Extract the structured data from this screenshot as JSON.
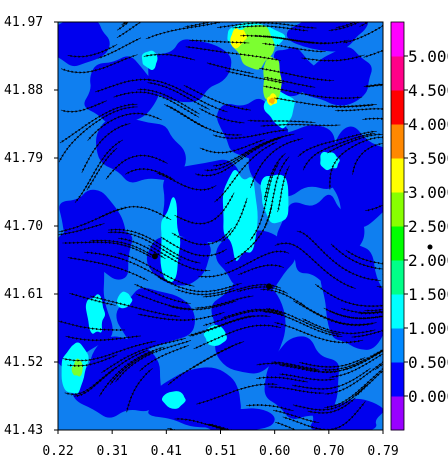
{
  "chart_data": {
    "type": "heatmap",
    "title": "",
    "xlabel": "",
    "ylabel": "",
    "x_ticks": [
      "0.22",
      "0.31",
      "0.41",
      "0.51",
      "0.60",
      "0.70",
      "0.79"
    ],
    "y_ticks": [
      "41.97",
      "41.88",
      "41.79",
      "41.70",
      "41.61",
      "41.52",
      "41.43"
    ],
    "xlim": [
      0.22,
      0.79
    ],
    "ylim": [
      41.43,
      41.97
    ],
    "colorbar": {
      "levels": [
        "0.000",
        "0.500",
        "1.000",
        "1.500",
        "2.000",
        "2.500",
        "3.000",
        "3.500",
        "4.000",
        "4.500",
        "5.000"
      ],
      "colors": [
        "#9900ff",
        "#0000ff",
        "#0088ff",
        "#00ffff",
        "#00ff88",
        "#00ff00",
        "#88ff00",
        "#ffff00",
        "#ff8800",
        "#ff0000",
        "#ff0088",
        "#ff00ff"
      ]
    },
    "field_colors": {
      "low": "#0000ee",
      "mid": "#0f7ff0",
      "high": "#00ffff",
      "peak_green": "#7cff30",
      "peak_yellow": "#ffff00",
      "peak_orange": "#ffb000"
    },
    "markers": [
      {
        "x": 0.39,
        "y": 41.66
      },
      {
        "x": 0.59,
        "y": 41.62
      }
    ],
    "overlay": "streamlines",
    "grid": false,
    "legend": "colorbar-right"
  }
}
